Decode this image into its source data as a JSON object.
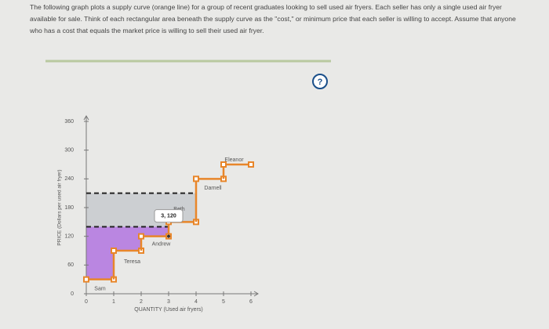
{
  "instructions": "The following graph plots a supply curve (orange line) for a group of recent graduates looking to sell used air fryers. Each seller has only a single used air fryer available for sale. Think of each rectangular area beneath the supply curve as the \"cost,\" or minimum price that each seller is willing to accept. Assume that anyone who has a cost that equals the market price is willing to sell their used air fryer.",
  "help": "?",
  "chart_data": {
    "type": "step",
    "x_label": "QUANTITY (Used air fryers)",
    "y_label": "PRICE (Dollars per used air fryer)",
    "categories": [
      "Sam",
      "Teresa",
      "Andrew",
      "Beth",
      "Darnell",
      "Eleanor"
    ],
    "values": [
      30,
      90,
      120,
      150,
      240,
      270
    ],
    "color": "#e8862a",
    "price_lines": [
      210,
      140
    ],
    "area_colors": [
      "#c9cccf",
      "#b57be0"
    ],
    "point_label": {
      "label": "3, 120",
      "x": 3,
      "y": 120
    },
    "xlim": [
      0,
      6
    ],
    "xticks": [
      0,
      1,
      2,
      3,
      4,
      5,
      6
    ],
    "ylim": [
      0,
      360
    ],
    "yticks": [
      0,
      60,
      120,
      180,
      240,
      300,
      360
    ]
  }
}
